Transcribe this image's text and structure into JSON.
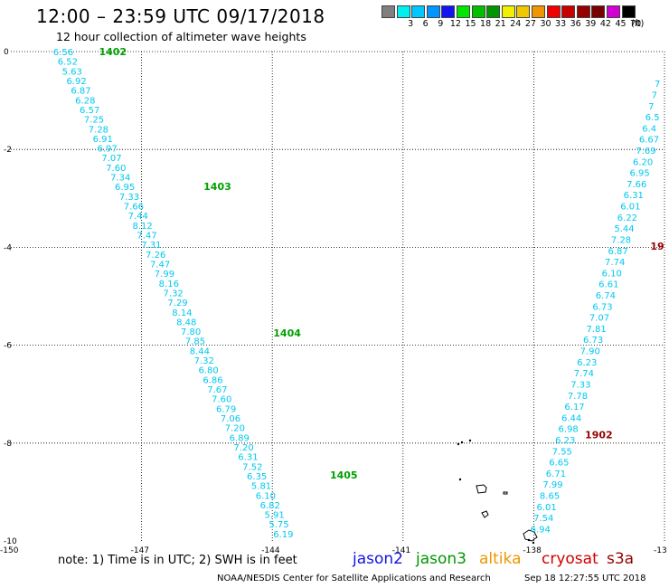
{
  "title": "12:00 – 23:59 UTC 09/17/2018",
  "subtitle": "12 hour collection of altimeter wave heights",
  "legend": {
    "unit": "(ft)",
    "items": [
      {
        "label": "",
        "color": "#808080"
      },
      {
        "label": "3",
        "color": "#00f0f0"
      },
      {
        "label": "6",
        "color": "#00c8ff"
      },
      {
        "label": "9",
        "color": "#0096ff"
      },
      {
        "label": "12",
        "color": "#1414f0"
      },
      {
        "label": "15",
        "color": "#00e600"
      },
      {
        "label": "18",
        "color": "#00c000"
      },
      {
        "label": "21",
        "color": "#009600"
      },
      {
        "label": "24",
        "color": "#f0f000"
      },
      {
        "label": "27",
        "color": "#f0c800"
      },
      {
        "label": "30",
        "color": "#f09600"
      },
      {
        "label": "33",
        "color": "#f00000"
      },
      {
        "label": "36",
        "color": "#c80000"
      },
      {
        "label": "39",
        "color": "#960000"
      },
      {
        "label": "42",
        "color": "#780000"
      },
      {
        "label": "45",
        "color": "#d200d2"
      },
      {
        "label": "70",
        "color": "#000000"
      }
    ]
  },
  "axes": {
    "lon_labels": [
      "-150",
      "-147",
      "-144",
      "-141",
      "-138",
      "-13"
    ],
    "lat_labels": [
      "0",
      "-2",
      "-4",
      "-6",
      "-8",
      "-10"
    ],
    "lon_range": [
      -150,
      -135
    ],
    "lat_range": [
      -10,
      0
    ]
  },
  "tracks": [
    {
      "satellite": "jason3",
      "color": "#00c8f0",
      "time_color": "#00a000",
      "times": [
        {
          "label": "1402",
          "lon": -148.6,
          "lat": 0.0
        },
        {
          "label": "1403",
          "lon": -146.2,
          "lat": -2.75
        },
        {
          "label": "1404",
          "lon": -144.6,
          "lat": -5.75
        },
        {
          "label": "1405",
          "lon": -143.3,
          "lat": -8.65
        }
      ],
      "values": [
        "6.56",
        "6.52",
        "5.63",
        "6.92",
        "6.87",
        "6.28",
        "6.57",
        "7.25",
        "7.28",
        "6.91",
        "6.97",
        "7.07",
        "7.60",
        "7.34",
        "6.95",
        "7.33",
        "7.66",
        "7.44",
        "8.12",
        "7.47",
        "7.31",
        "7.26",
        "7.47",
        "7.99",
        "8.16",
        "7.32",
        "7.29",
        "8.14",
        "8.48",
        "7.80",
        "7.85",
        "8.44",
        "7.32",
        "6.80",
        "6.86",
        "7.67",
        "7.60",
        "6.79",
        "7.06",
        "7.20",
        "6.89",
        "7.20",
        "6.31",
        "7.52",
        "6.35",
        "5.81",
        "6.10",
        "6.82",
        "5.91",
        "5.75",
        "6.19"
      ]
    },
    {
      "satellite": "cryosat",
      "color": "#00c8f0",
      "time_color": "#960000",
      "times": [
        {
          "label": "1902",
          "lon": -136.7,
          "lat": -7.83
        },
        {
          "label": "19",
          "lon": -135.2,
          "lat": -3.97
        }
      ],
      "values": [
        "6.94",
        "7.54",
        "6.01",
        "8.65",
        "7.99",
        "6.71",
        "6.65",
        "7.55",
        "6.23",
        "6.98",
        "6.44",
        "6.17",
        "7.78",
        "7.33",
        "7.74",
        "6.23",
        "7.90",
        "6.73",
        "7.81",
        "7.07",
        "6.73",
        "6.74",
        "6.61",
        "6.10",
        "7.74",
        "6.87",
        "7.28",
        "5.44",
        "6.22",
        "6.01",
        "6.31",
        "7.66",
        "6.95",
        "6.20",
        "7.69",
        "6.67",
        "6.4",
        "6.5",
        "7",
        "7",
        "7"
      ]
    }
  ],
  "note": "note: 1) Time is in UTC; 2) SWH is in feet",
  "satellites": [
    {
      "name": "jason2",
      "color": "#1414e0"
    },
    {
      "name": "jason3",
      "color": "#009600"
    },
    {
      "name": "altika",
      "color": "#f09600"
    },
    {
      "name": "cryosat",
      "color": "#d00000"
    },
    {
      "name": "s3a",
      "color": "#960000"
    }
  ],
  "credit": "NOAA/NESDIS Center for Satellite Applications and Research",
  "generated": "Sep 18 12:27:55 UTC 2018"
}
